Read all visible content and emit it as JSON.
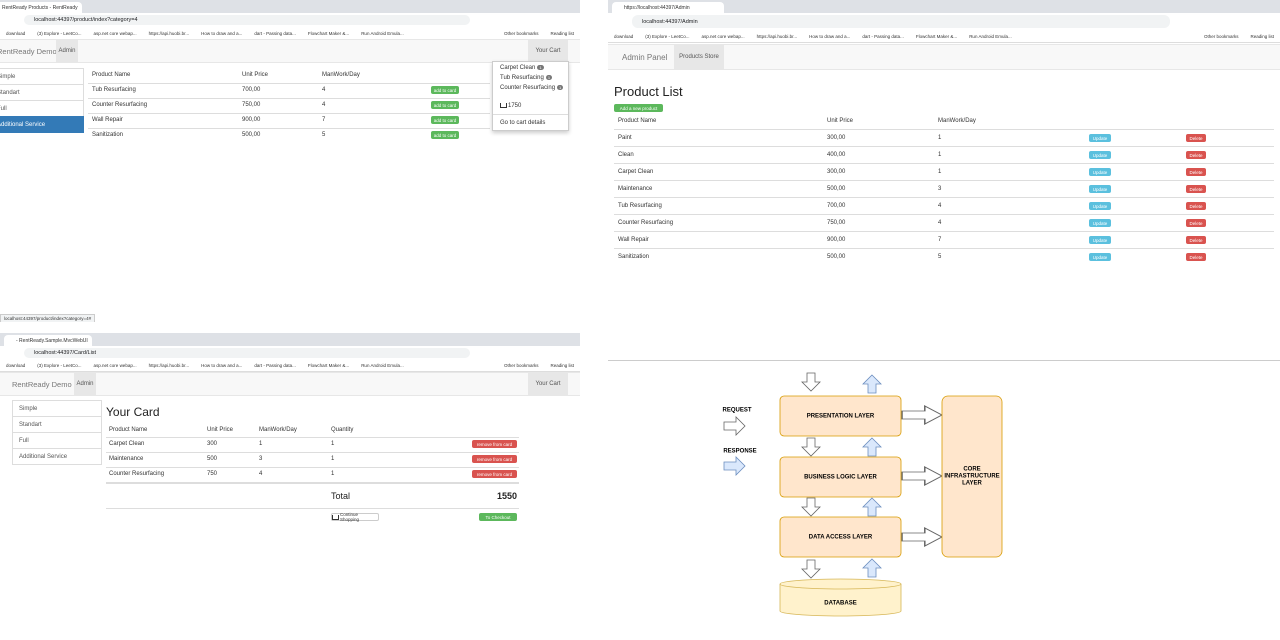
{
  "bookmarks": [
    "download",
    "(3) Explore - LeetCo...",
    "asp.net core webap...",
    "https://api.huobi.br...",
    "How to draw and a...",
    "dart - Passing data...",
    "Flowchart Maker &...",
    "Run Android Emula..."
  ],
  "other_bookmarks": "Other bookmarks",
  "reading_list": "Reading list",
  "product_page": {
    "tab_title": "RentReady Products - RentReady",
    "url": "localhost:44397/product/index?category=4",
    "brand": "RentReady Demo",
    "nav": "Admin",
    "cart": "Your Cart",
    "sidebar": [
      "Simple",
      "Standart",
      "Full",
      "Additional Service"
    ],
    "headers": [
      "Product Name",
      "Unit Price",
      "ManWork/Day"
    ],
    "rows": [
      [
        "Tub Resurfacing",
        "700,00",
        "4"
      ],
      [
        "Counter Resurfacing",
        "750,00",
        "4"
      ],
      [
        "Wall Repair",
        "900,00",
        "7"
      ],
      [
        "Sanitization",
        "500,00",
        "5"
      ]
    ],
    "row_button": "add to card",
    "dropdown": {
      "items": [
        [
          "Carpet Clean",
          "1"
        ],
        [
          "Tub Resurfacing",
          "1"
        ],
        [
          "Counter Resurfacing",
          "1"
        ]
      ],
      "total": "1750",
      "link": "Go to cart details"
    },
    "status_url": "localhost:44397/product/index?category=4#"
  },
  "admin_page": {
    "tab_title": "https://localhost:44397/Admin",
    "url": "localhost:44397/Admin",
    "brand": "Admin Panel",
    "nav": "Products Store",
    "heading": "Product List",
    "add_button": "Add a new product",
    "headers": [
      "Product Name",
      "Unit Price",
      "ManWork/Day"
    ],
    "rows": [
      [
        "Paint",
        "300,00",
        "1"
      ],
      [
        "Clean",
        "400,00",
        "1"
      ],
      [
        "Carpet Clean",
        "300,00",
        "1"
      ],
      [
        "Maintenance",
        "500,00",
        "3"
      ],
      [
        "Tub Resurfacing",
        "700,00",
        "4"
      ],
      [
        "Counter Resurfacing",
        "750,00",
        "4"
      ],
      [
        "Wall Repair",
        "900,00",
        "7"
      ],
      [
        "Sanitization",
        "500,00",
        "5"
      ]
    ],
    "update_button": "Update",
    "delete_button": "Delete"
  },
  "cart_page": {
    "tab_title": "- RentReady.Sample.MvcWebUI",
    "url": "localhost:44397/Card/List",
    "brand": "RentReady Demo",
    "nav": "Admin",
    "cart": "Your Cart",
    "sidebar": [
      "Simple",
      "Standart",
      "Full",
      "Additional Service"
    ],
    "heading": "Your Card",
    "headers": [
      "Product Name",
      "Unit Price",
      "ManWork/Day",
      "Quantity"
    ],
    "rows": [
      [
        "Carpet Clean",
        "300",
        "1",
        "1"
      ],
      [
        "Maintenance",
        "500",
        "3",
        "1"
      ],
      [
        "Counter Resurfacing",
        "750",
        "4",
        "1"
      ]
    ],
    "remove_button": "remove from card",
    "total_label": "Total",
    "total": "1550",
    "continue_button": "Continue Shopping",
    "checkout_button": "To Checkout"
  },
  "diagram": {
    "request": "REQUEST",
    "response": "RESPONSE",
    "presentation": "PRESENTATION LAYER",
    "business": "BUSINESS LOGIC LAYER",
    "data_access": "DATA ACCESS LAYER",
    "core": [
      "CORE",
      "INFRASTRUCTURE",
      "LAYER"
    ],
    "database": "DATABASE"
  }
}
